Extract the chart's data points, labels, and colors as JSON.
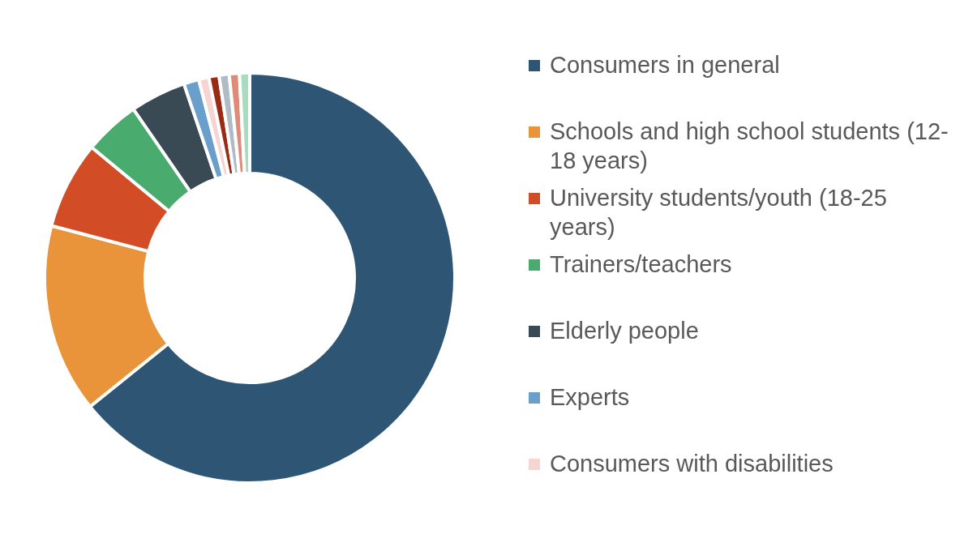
{
  "chart_data": {
    "type": "donut",
    "categories": [
      "Consumers in general",
      "Schools and high school students (12-18 years)",
      "University students/youth (18-25 years)",
      "Trainers/teachers",
      "Elderly people",
      "Experts",
      "Consumers with disabilities",
      null,
      null,
      null,
      null
    ],
    "values": [
      64.2,
      14.9,
      6.9,
      4.4,
      4.4,
      1.2,
      0.8,
      0.8,
      0.8,
      0.8,
      0.8
    ],
    "colors": [
      "#2e5674",
      "#e9943a",
      "#d24d26",
      "#4aab6e",
      "#394a54",
      "#6a9fcb",
      "#f7d3d1",
      "#9a2a14",
      "#b0bcc4",
      "#e08a7a",
      "#a8dcc0"
    ],
    "legend": "right"
  }
}
